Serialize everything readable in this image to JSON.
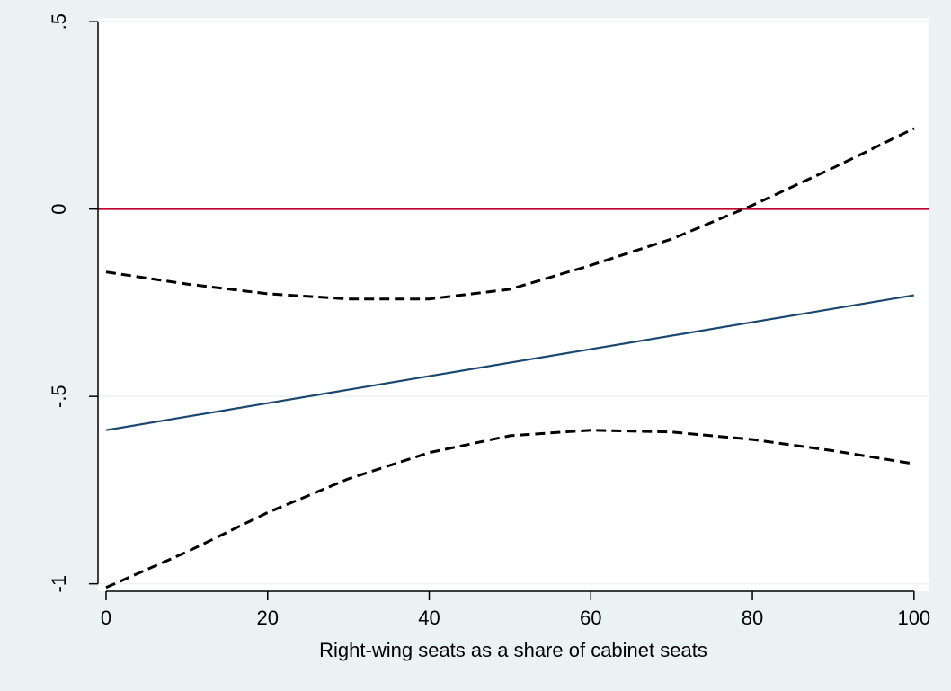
{
  "chart_data": {
    "type": "line",
    "title": "",
    "xlabel": "Right-wing seats as a share of cabinet seats",
    "ylabel": "",
    "xlim": [
      -1,
      101.8
    ],
    "ylim": [
      -1.02,
      0.51
    ],
    "x_ticks": [
      0,
      20,
      40,
      60,
      80,
      100
    ],
    "x_tick_labels": [
      "0",
      "20",
      "40",
      "60",
      "80",
      "100"
    ],
    "y_ticks": [
      -1,
      -0.5,
      0,
      0.5
    ],
    "y_tick_labels": [
      "-1",
      "-.5",
      "0",
      ".5"
    ],
    "grid": "horizontal",
    "reference_line": {
      "y": 0,
      "color": "#c0002a"
    },
    "x": [
      0,
      10,
      20,
      30,
      40,
      50,
      60,
      70,
      80,
      90,
      100
    ],
    "series": [
      {
        "role": "estimate",
        "color": "#1a476f",
        "style": "solid",
        "values": [
          -0.59,
          -0.554,
          -0.518,
          -0.482,
          -0.446,
          -0.41,
          -0.374,
          -0.338,
          -0.302,
          -0.266,
          -0.23
        ]
      },
      {
        "role": "upper-bound",
        "color": "#000000",
        "style": "dashed",
        "values": [
          -0.168,
          -0.2,
          -0.226,
          -0.24,
          -0.24,
          -0.214,
          -0.15,
          -0.08,
          0.01,
          0.11,
          0.215
        ]
      },
      {
        "role": "lower-bound",
        "color": "#000000",
        "style": "dashed",
        "values": [
          -1.01,
          -0.915,
          -0.81,
          -0.72,
          -0.65,
          -0.605,
          -0.59,
          -0.595,
          -0.615,
          -0.645,
          -0.68
        ]
      }
    ]
  }
}
